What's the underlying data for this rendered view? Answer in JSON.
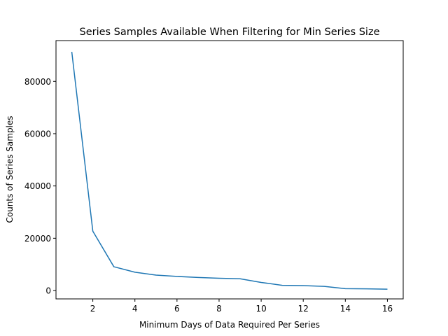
{
  "chart_data": {
    "type": "line",
    "title": "Series Samples Available When Filtering for Min Series Size",
    "xlabel": "Minimum Days of Data Required Per Series",
    "ylabel": "Counts of Series Samples",
    "xlim": [
      0.25,
      16.75
    ],
    "ylim": [
      -3200,
      95600
    ],
    "xticks": [
      2,
      4,
      6,
      8,
      10,
      12,
      14,
      16
    ],
    "yticks": [
      0,
      20000,
      40000,
      60000,
      80000
    ],
    "grid": false,
    "series": [
      {
        "color": "#1f77b4",
        "x": [
          1,
          2,
          3,
          4,
          5,
          6,
          7,
          8,
          9,
          10,
          11,
          12,
          13,
          14,
          15,
          16
        ],
        "y": [
          91300,
          22700,
          9100,
          7000,
          5900,
          5400,
          5000,
          4700,
          4500,
          3100,
          2000,
          1900,
          1600,
          700,
          650,
          500
        ]
      }
    ]
  }
}
